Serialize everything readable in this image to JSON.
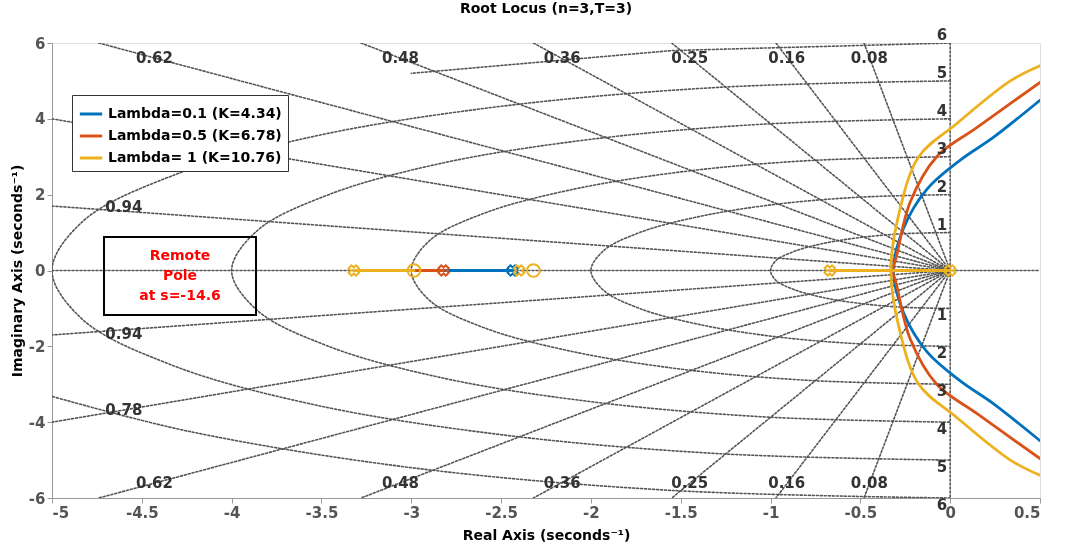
{
  "chart_data": {
    "type": "line",
    "title": "Root Locus (n=3,T=3)",
    "xlabel": "Real Axis (seconds⁻¹)",
    "ylabel": "Imaginary Axis (seconds⁻¹)",
    "xlim": [
      -5,
      0.5
    ],
    "xticks": [
      -5,
      -4.5,
      -4,
      -3.5,
      -3,
      -2.5,
      -2,
      -1.5,
      -1,
      -0.5,
      0,
      0.5
    ],
    "ylim": [
      -6,
      6
    ],
    "yticks": [
      -6,
      -4,
      -2,
      0,
      2,
      4,
      6
    ],
    "legend": "top left",
    "series": [
      {
        "line_style": "dotted",
        "color": "#555555",
        "x": [
          -5,
          0.5
        ],
        "values": [
          0,
          0
        ]
      },
      {
        "line_style": "dotted",
        "color": "#555555",
        "x": [
          0,
          0
        ],
        "values": [
          6,
          -6
        ]
      },
      {
        "line_style": "dotted",
        "color": "#555555",
        "x": [
          -0.48,
          0,
          -0.48
        ],
        "values": [
          6,
          0,
          -6
        ]
      },
      {
        "line_style": "dotted",
        "color": "#555555",
        "x": [
          -0.97,
          0,
          -0.97
        ],
        "values": [
          6,
          0,
          -6
        ]
      },
      {
        "line_style": "dotted",
        "color": "#555555",
        "x": [
          -1.55,
          0,
          -1.55
        ],
        "values": [
          6,
          0,
          -6
        ]
      },
      {
        "line_style": "dotted",
        "color": "#555555",
        "x": [
          -2.32,
          0,
          -2.32
        ],
        "values": [
          6,
          0,
          -6
        ]
      },
      {
        "line_style": "dotted",
        "color": "#555555",
        "x": [
          -3.28,
          0,
          -3.28
        ],
        "values": [
          6,
          0,
          -6
        ]
      },
      {
        "line_style": "dotted",
        "color": "#555555",
        "x": [
          -4.74,
          0,
          -4.74
        ],
        "values": [
          6,
          0,
          -6
        ]
      },
      {
        "line_style": "dotted",
        "color": "#555555",
        "x": [
          -5,
          0,
          -5
        ],
        "values": [
          4.0,
          0,
          -4.0
        ]
      },
      {
        "line_style": "dotted",
        "color": "#555555",
        "x": [
          -5,
          0,
          -5
        ],
        "values": [
          1.7,
          0,
          -1.7
        ]
      },
      {
        "line_style": "dotted",
        "color": "#555555",
        "x": [
          0,
          -0.26,
          -0.5,
          -0.71,
          -0.87,
          -0.97,
          -1,
          -0.97,
          -0.87,
          -0.71,
          -0.5,
          -0.26,
          0
        ],
        "values": [
          1,
          0.97,
          0.87,
          0.71,
          0.5,
          0.26,
          0,
          -0.26,
          -0.5,
          -0.71,
          -0.87,
          -0.97,
          -1
        ]
      },
      {
        "line_style": "dotted",
        "color": "#555555",
        "x": [
          0,
          -0.52,
          -1,
          -1.41,
          -1.73,
          -1.93,
          -2,
          -1.93,
          -1.73,
          -1.41,
          -1,
          -0.52,
          0
        ],
        "values": [
          2,
          1.93,
          1.73,
          1.41,
          1,
          0.52,
          0,
          -0.52,
          -1,
          -1.41,
          -1.73,
          -1.93,
          -2
        ]
      },
      {
        "line_style": "dotted",
        "color": "#555555",
        "x": [
          0,
          -0.78,
          -1.5,
          -2.12,
          -2.6,
          -2.9,
          -3,
          -2.9,
          -2.6,
          -2.12,
          -1.5,
          -0.78,
          0
        ],
        "values": [
          3,
          2.9,
          2.6,
          2.12,
          1.5,
          0.78,
          0,
          -0.78,
          -1.5,
          -2.12,
          -2.6,
          -2.9,
          -3
        ]
      },
      {
        "line_style": "dotted",
        "color": "#555555",
        "x": [
          0,
          -1.04,
          -2,
          -2.83,
          -3.46,
          -3.86,
          -4,
          -3.86,
          -3.46,
          -2.83,
          -2,
          -1.04,
          0
        ],
        "values": [
          4,
          3.86,
          3.46,
          2.83,
          2,
          1.04,
          0,
          -1.04,
          -2,
          -2.83,
          -3.46,
          -3.86,
          -4
        ]
      },
      {
        "line_style": "dotted",
        "color": "#555555",
        "x": [
          0,
          -1.29,
          -2.5,
          -3.54,
          -4.33,
          -4.83,
          -5,
          -4.83,
          -4.33,
          -3.54,
          -2.5,
          -1.29,
          0
        ],
        "values": [
          5,
          4.83,
          4.33,
          3.54,
          2.5,
          1.29,
          0,
          -1.29,
          -2.5,
          -3.54,
          -4.33,
          -4.83,
          -5
        ]
      },
      {
        "line_style": "dotted",
        "color": "#555555",
        "x": [
          0,
          -1.55,
          -3
        ],
        "values": [
          6,
          5.8,
          5.2
        ]
      },
      {
        "line_style": "dotted",
        "color": "#555555",
        "x": [
          0,
          -1.55,
          -3,
          -4.24,
          -5
        ],
        "values": [
          -6,
          -5.8,
          -5.2,
          -4.24,
          -3.32
        ]
      },
      {
        "name": "Lambda=0.1 (K=4.34)",
        "color": "#0072bd",
        "x": [
          0.5,
          0.24,
          0.056,
          -0.13,
          -0.26,
          -0.316,
          -0.26,
          -0.13,
          0.056,
          0.24,
          0.5
        ],
        "values": [
          4.49,
          3.51,
          2.91,
          2.14,
          1.11,
          0,
          -1.11,
          -2.14,
          -2.91,
          -3.51,
          -4.49
        ]
      },
      {
        "name": "Lambda=0.5 (K=6.78)",
        "color": "#d95319",
        "x": [
          0.5,
          0.148,
          -0.075,
          -0.223,
          -0.3,
          -0.32,
          -0.3,
          -0.223,
          -0.075,
          0.148,
          0.5
        ],
        "values": [
          4.96,
          3.77,
          3.0,
          1.8,
          0.35,
          0,
          -0.35,
          -1.8,
          -3.0,
          -3.77,
          -4.96
        ]
      },
      {
        "name": "Lambda= 1 (K=10.76)",
        "color": "#edb120",
        "x": [
          0.5,
          0.335,
          0.03,
          -0.175,
          -0.287,
          -0.33,
          -0.287,
          -0.175,
          0.03,
          0.335,
          0.5
        ],
        "values": [
          5.4,
          5.0,
          3.85,
          3.0,
          1.46,
          0,
          -1.46,
          -3.0,
          -3.85,
          -5.0,
          -5.4
        ]
      },
      {
        "color": "#0072bd",
        "x": [
          -2.82,
          -2.435
        ],
        "values": [
          0,
          0
        ]
      },
      {
        "color": "#d95319",
        "x": [
          -2.985,
          -2.82
        ],
        "values": [
          0,
          0
        ]
      },
      {
        "color": "#edb120",
        "x": [
          -3.32,
          -2.985
        ],
        "values": [
          0,
          0
        ]
      },
      {
        "color": "#edb120",
        "x": [
          -0.67,
          0
        ],
        "values": [
          0,
          0
        ]
      },
      {
        "type": "scatter",
        "marker": "cross",
        "color": "#0072bd",
        "x": [
          -2.435
        ],
        "values": [
          0
        ]
      },
      {
        "type": "scatter",
        "marker": "cross",
        "color": "#d95319",
        "x": [
          -2.82
        ],
        "values": [
          0
        ]
      },
      {
        "type": "scatter",
        "marker": "cross",
        "color": "#edb120",
        "x": [
          -3.32,
          -2.4,
          -0.67,
          0
        ],
        "values": [
          0,
          0,
          0,
          0
        ]
      },
      {
        "type": "scatter",
        "marker": "circle",
        "color": "#edb120",
        "x": [
          -2.985,
          -2.32
        ],
        "values": [
          0,
          0
        ]
      }
    ],
    "annotations": [
      {
        "text": "0.62",
        "x": -4.43,
        "y": 5.6
      },
      {
        "text": "0.48",
        "x": -3.06,
        "y": 5.6
      },
      {
        "text": "0.36",
        "x": -2.16,
        "y": 5.6
      },
      {
        "text": "0.25",
        "x": -1.45,
        "y": 5.6
      },
      {
        "text": "0.16",
        "x": -0.91,
        "y": 5.6
      },
      {
        "text": "0.08",
        "x": -0.45,
        "y": 5.6
      },
      {
        "text": "0.62",
        "x": -4.43,
        "y": -5.6
      },
      {
        "text": "0.48",
        "x": -3.06,
        "y": -5.6
      },
      {
        "text": "0.36",
        "x": -2.16,
        "y": -5.6
      },
      {
        "text": "0.25",
        "x": -1.45,
        "y": -5.6
      },
      {
        "text": "0.16",
        "x": -0.91,
        "y": -5.6
      },
      {
        "text": "0.08",
        "x": -0.45,
        "y": -5.6
      },
      {
        "text": "0.94",
        "x": -4.6,
        "y": 1.67
      },
      {
        "text": "0.94",
        "x": -4.6,
        "y": -1.67
      },
      {
        "text": "0.78",
        "x": -4.6,
        "y": -3.69
      },
      {
        "text": "1",
        "x": 0,
        "y": 1
      },
      {
        "text": "2",
        "x": 0,
        "y": 2
      },
      {
        "text": "3",
        "x": 0,
        "y": 3
      },
      {
        "text": "4",
        "x": 0,
        "y": 4
      },
      {
        "text": "5",
        "x": 0,
        "y": 5
      },
      {
        "text": "6",
        "x": 0,
        "y": 6
      },
      {
        "text": "1",
        "x": 0,
        "y": -1
      },
      {
        "text": "2",
        "x": 0,
        "y": -2
      },
      {
        "text": "3",
        "x": 0,
        "y": -3
      },
      {
        "text": "4",
        "x": 0,
        "y": -4
      },
      {
        "text": "5",
        "x": 0,
        "y": -5
      },
      {
        "text": "6",
        "x": 0,
        "y": -6
      },
      "Remote\nPole\nat s=-14.6"
    ]
  }
}
